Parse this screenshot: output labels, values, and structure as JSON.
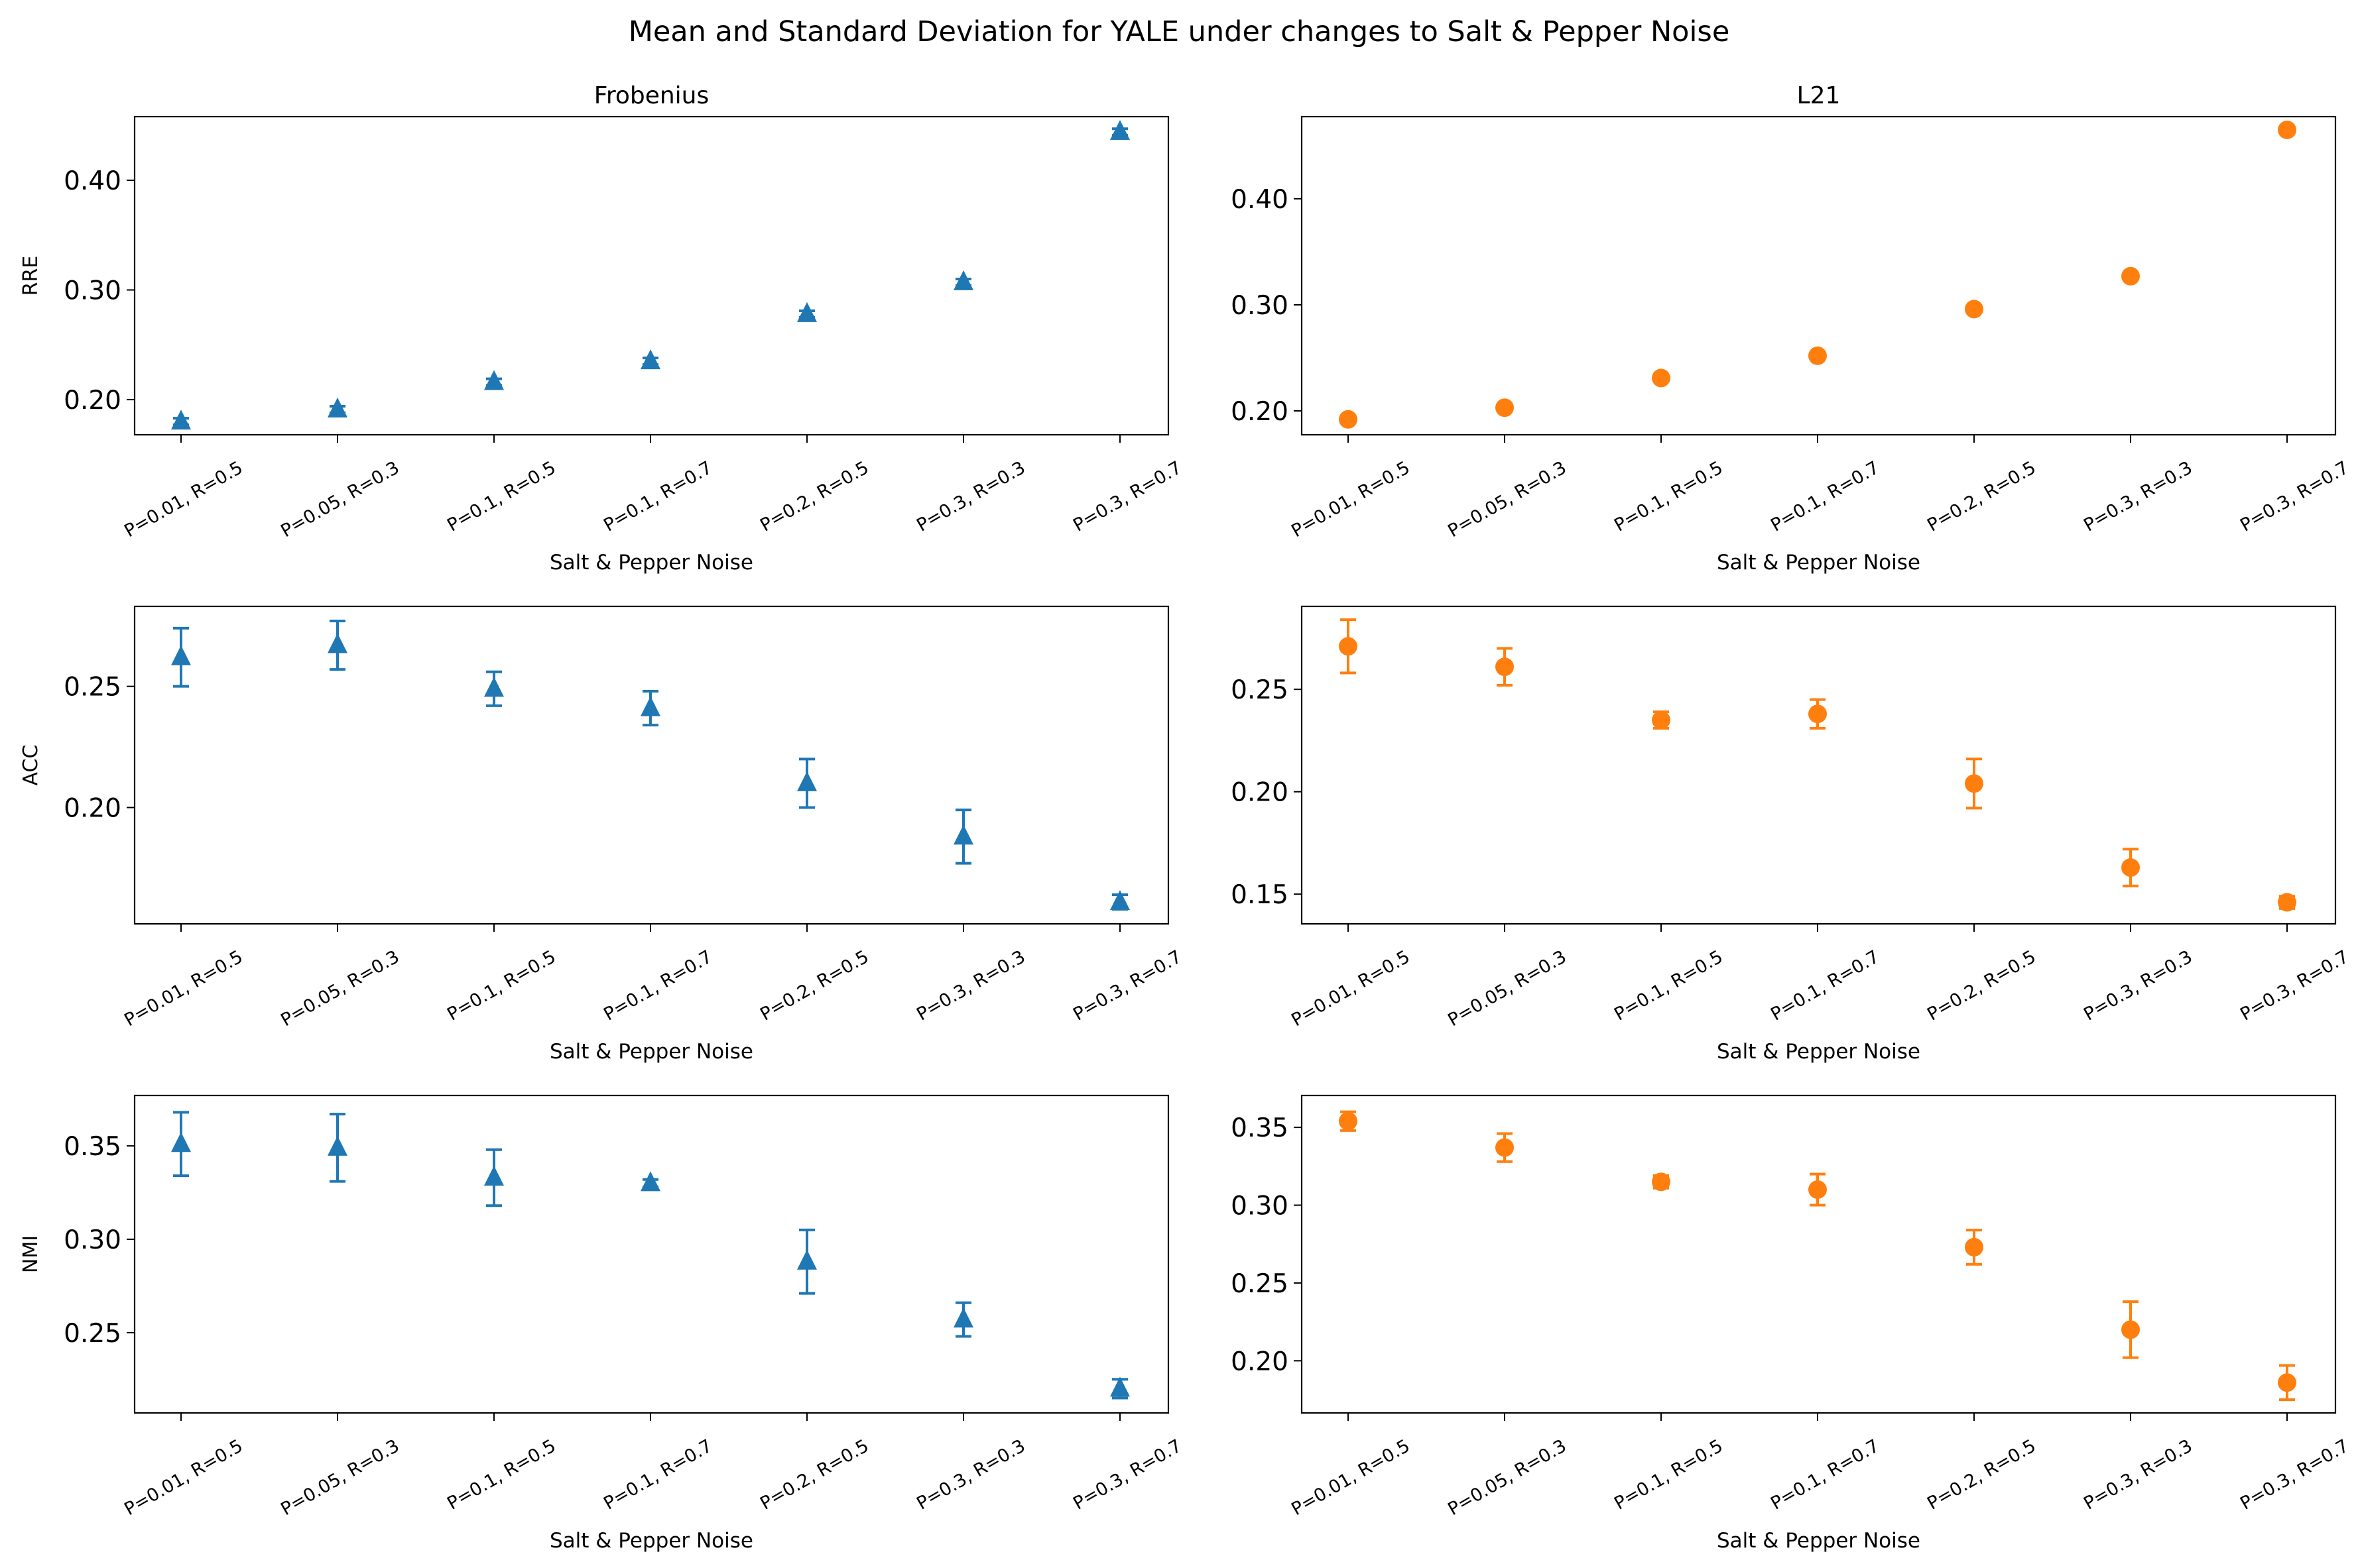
{
  "figure": {
    "title": "Mean and Standard Deviation for YALE under changes to Salt & Pepper Noise"
  },
  "colors": {
    "frobenius": "#1f77b4",
    "l21": "#ff7f0e"
  },
  "chart_data": [
    {
      "type": "scatter",
      "marker": "triangle",
      "title": "Frobenius",
      "xlabel": "Salt & Pepper Noise",
      "ylabel": "RRE",
      "categories": [
        "P=0.01, R=0.5",
        "P=0.05, R=0.3",
        "P=0.1, R=0.5",
        "P=0.1, R=0.7",
        "P=0.2, R=0.5",
        "P=0.3, R=0.3",
        "P=0.3, R=0.7"
      ],
      "series": [
        {
          "values": [
            0.18,
            0.191,
            0.216,
            0.235,
            0.278,
            0.307,
            0.444
          ],
          "std": [
            0.003,
            0.003,
            0.003,
            0.003,
            0.003,
            0.003,
            0.003
          ]
        }
      ],
      "yticks": [
        "0.20",
        "0.30",
        "0.40"
      ],
      "ylim": [
        0.168,
        0.458
      ]
    },
    {
      "type": "scatter",
      "marker": "circle",
      "title": "L21",
      "xlabel": "Salt & Pepper Noise",
      "ylabel": "",
      "categories": [
        "P=0.01, R=0.5",
        "P=0.05, R=0.3",
        "P=0.1, R=0.5",
        "P=0.1, R=0.7",
        "P=0.2, R=0.5",
        "P=0.3, R=0.3",
        "P=0.3, R=0.7"
      ],
      "series": [
        {
          "values": [
            0.192,
            0.203,
            0.231,
            0.252,
            0.296,
            0.327,
            0.465
          ],
          "std": [
            0.002,
            0.002,
            0.002,
            0.002,
            0.002,
            0.002,
            0.002
          ]
        }
      ],
      "yticks": [
        "0.20",
        "0.30",
        "0.40"
      ],
      "ylim": [
        0.1775,
        0.4775
      ]
    },
    {
      "type": "scatter",
      "marker": "triangle",
      "title": "",
      "xlabel": "Salt & Pepper Noise",
      "ylabel": "ACC",
      "categories": [
        "P=0.01, R=0.5",
        "P=0.05, R=0.3",
        "P=0.1, R=0.5",
        "P=0.1, R=0.7",
        "P=0.2, R=0.5",
        "P=0.3, R=0.3",
        "P=0.3, R=0.7"
      ],
      "series": [
        {
          "values": [
            0.262,
            0.267,
            0.249,
            0.241,
            0.21,
            0.188,
            0.161
          ],
          "std": [
            0.012,
            0.01,
            0.007,
            0.007,
            0.01,
            0.011,
            0.003
          ]
        }
      ],
      "yticks": [
        "0.20",
        "0.25"
      ],
      "ylim": [
        0.152,
        0.283
      ]
    },
    {
      "type": "scatter",
      "marker": "circle",
      "title": "",
      "xlabel": "Salt & Pepper Noise",
      "ylabel": "",
      "categories": [
        "P=0.01, R=0.5",
        "P=0.05, R=0.3",
        "P=0.1, R=0.5",
        "P=0.1, R=0.7",
        "P=0.2, R=0.5",
        "P=0.3, R=0.3",
        "P=0.3, R=0.7"
      ],
      "series": [
        {
          "values": [
            0.271,
            0.261,
            0.235,
            0.238,
            0.204,
            0.163,
            0.146
          ],
          "std": [
            0.013,
            0.009,
            0.004,
            0.007,
            0.012,
            0.009,
            0.003
          ]
        }
      ],
      "yticks": [
        "0.15",
        "0.20",
        "0.25"
      ],
      "ylim": [
        0.1355,
        0.2905
      ]
    },
    {
      "type": "scatter",
      "marker": "triangle",
      "title": "",
      "xlabel": "Salt & Pepper Noise",
      "ylabel": "NMI",
      "categories": [
        "P=0.01, R=0.5",
        "P=0.05, R=0.3",
        "P=0.1, R=0.5",
        "P=0.1, R=0.7",
        "P=0.2, R=0.5",
        "P=0.3, R=0.3",
        "P=0.3, R=0.7"
      ],
      "series": [
        {
          "values": [
            0.351,
            0.349,
            0.333,
            0.33,
            0.288,
            0.257,
            0.22
          ],
          "std": [
            0.017,
            0.018,
            0.015,
            0.002,
            0.017,
            0.009,
            0.005
          ]
        }
      ],
      "yticks": [
        "0.25",
        "0.30",
        "0.35"
      ],
      "ylim": [
        0.207,
        0.377
      ]
    },
    {
      "type": "scatter",
      "marker": "circle",
      "title": "",
      "xlabel": "Salt & Pepper Noise",
      "ylabel": "",
      "categories": [
        "P=0.01, R=0.5",
        "P=0.05, R=0.3",
        "P=0.1, R=0.5",
        "P=0.1, R=0.7",
        "P=0.2, R=0.5",
        "P=0.3, R=0.3",
        "P=0.3, R=0.7"
      ],
      "series": [
        {
          "values": [
            0.354,
            0.337,
            0.315,
            0.31,
            0.273,
            0.22,
            0.186
          ],
          "std": [
            0.006,
            0.009,
            0.004,
            0.01,
            0.011,
            0.018,
            0.011
          ]
        }
      ],
      "yticks": [
        "0.20",
        "0.25",
        "0.30",
        "0.35"
      ],
      "ylim": [
        0.1665,
        0.3705
      ]
    }
  ]
}
